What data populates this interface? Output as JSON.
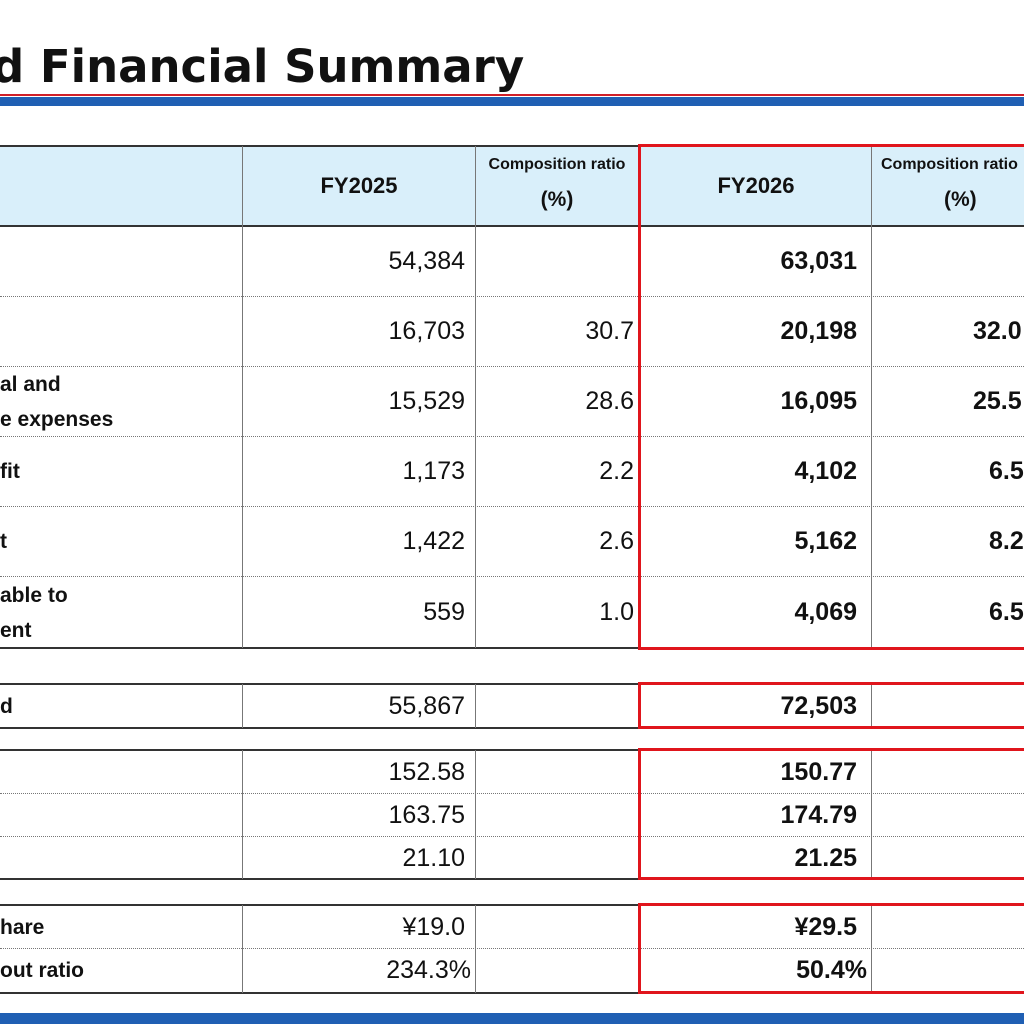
{
  "title": "ted Financial Summary",
  "colors": {
    "accent_red": "#e0151c",
    "accent_blue": "#1f5fb3",
    "header_bg": "#d9effa"
  },
  "headers": {
    "fy2025": "FY2025",
    "comp_ratio_1": "Composition ratio",
    "comp_ratio_unit_1": "(%)",
    "fy2026": "FY2026",
    "comp_ratio_2": "Composition ratio",
    "comp_ratio_unit_2": "(%)"
  },
  "main_rows": [
    {
      "label_1": "",
      "label_2": "",
      "fy2025": "54,384",
      "ratio2025": "",
      "fy2026": "63,031",
      "ratio2026": ""
    },
    {
      "label_1": "",
      "label_2": "",
      "fy2025": "16,703",
      "ratio2025": "30.7",
      "fy2026": "20,198",
      "ratio2026": "32.0"
    },
    {
      "label_1": "al and",
      "label_2": "e expenses",
      "fy2025": "15,529",
      "ratio2025": "28.6",
      "fy2026": "16,095",
      "ratio2026": "25.5"
    },
    {
      "label_1": "fit",
      "label_2": "",
      "fy2025": "1,173",
      "ratio2025": "2.2",
      "fy2026": "4,102",
      "ratio2026": "6.5"
    },
    {
      "label_1": "t",
      "label_2": "",
      "fy2025": "1,422",
      "ratio2025": "2.6",
      "fy2026": "5,162",
      "ratio2026": "8.2"
    },
    {
      "label_1": "able to",
      "label_2": "ent",
      "fy2025": "559",
      "ratio2025": "1.0",
      "fy2026": "4,069",
      "ratio2026": "6.5"
    }
  ],
  "block2": [
    {
      "label": "d",
      "fy2025": "55,867",
      "fy2026": "72,503"
    }
  ],
  "block3": [
    {
      "label": "",
      "fy2025": "152.58",
      "fy2026": "150.77"
    },
    {
      "label": "",
      "fy2025": "163.75",
      "fy2026": "174.79"
    },
    {
      "label": "",
      "fy2025": "21.10",
      "fy2026": "21.25"
    }
  ],
  "block4": [
    {
      "label": "hare",
      "fy2025": "¥19.0",
      "fy2026": "¥29.5"
    },
    {
      "label": "out ratio",
      "fy2025": "234.3%",
      "fy2026": "50.4%"
    }
  ]
}
